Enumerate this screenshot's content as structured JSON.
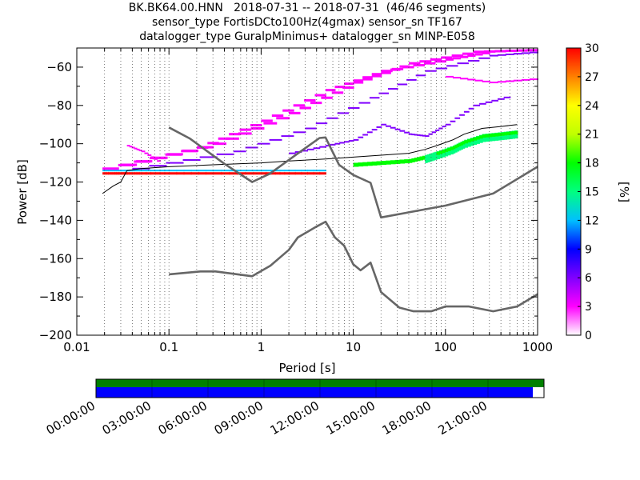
{
  "header": {
    "title_lines": [
      "BK.BK64.00.HNN   2018-07-31 -- 2018-07-31  (46/46 segments)",
      "sensor_type FortisDCto100Hz(4gmax) sensor_sn TF167",
      "datalogger_type GuralpMinimus+ datalogger_sn MINP-E058"
    ]
  },
  "chart_data": [
    {
      "type": "heatmap",
      "xlabel": "Period [s]",
      "ylabel": "Power [dB]",
      "x_scale": "log",
      "xlim": [
        0.01,
        1000
      ],
      "ylim": [
        -200,
        -50
      ],
      "x_ticks": [
        0.01,
        0.1,
        1,
        10,
        100,
        1000
      ],
      "x_tick_labels": [
        "0.01",
        "0.1",
        "1",
        "10",
        "100",
        "1000"
      ],
      "y_ticks": [
        -200,
        -180,
        -160,
        -140,
        -120,
        -100,
        -80,
        -60
      ],
      "y_tick_labels": [
        "−200",
        "−180",
        "−160",
        "−140",
        "−120",
        "−100",
        "−80",
        "−60"
      ],
      "grid": "dotted (vertical)",
      "colorbar": {
        "label": "[%]",
        "range": [
          0,
          30
        ],
        "ticks": [
          "0",
          "3",
          "6",
          "9",
          "12",
          "15",
          "18",
          "21",
          "24",
          "27",
          "30"
        ],
        "colormap": [
          "#ffffff",
          "#ff00ff",
          "#8000ff",
          "#0000ff",
          "#00c0ff",
          "#00ff80",
          "#00ff00",
          "#c0ff00",
          "#ffff00",
          "#ff8000",
          "#ff0000"
        ]
      },
      "series": [
        {
          "name": "",
          "style": "black thin",
          "points": [
            [
              0.019,
              -126
            ],
            [
              0.025,
              -122
            ],
            [
              0.03,
              -120
            ],
            [
              0.035,
              -114
            ],
            [
              0.05,
              -113
            ],
            [
              0.1,
              -112
            ],
            [
              0.3,
              -111
            ],
            [
              1,
              -110
            ],
            [
              2,
              -109
            ],
            [
              5,
              -108
            ],
            [
              10,
              -107
            ],
            [
              20,
              -106
            ],
            [
              40,
              -105
            ],
            [
              60,
              -103
            ],
            [
              80,
              -101
            ],
            [
              120,
              -98
            ],
            [
              160,
              -95
            ],
            [
              250,
              -92
            ],
            [
              400,
              -91
            ],
            [
              600,
              -90
            ]
          ]
        },
        {
          "name": "",
          "style": "gray thick",
          "points": [
            [
              0.1,
              -91.5
            ],
            [
              0.17,
              -97.4
            ],
            [
              0.4,
              -110.5
            ],
            [
              0.8,
              -120
            ],
            [
              1.24,
              -115.7
            ],
            [
              2.4,
              -105.7
            ],
            [
              4.3,
              -97
            ],
            [
              5.0,
              -96.7
            ],
            [
              7.0,
              -111
            ],
            [
              10.0,
              -116.3
            ],
            [
              15.4,
              -120.4
            ],
            [
              20,
              -138.5
            ],
            [
              100,
              -132.3
            ],
            [
              330,
              -126
            ],
            [
              1000,
              -112
            ]
          ]
        },
        {
          "name": "",
          "style": "gray thick",
          "points": [
            [
              0.1,
              -168.2
            ],
            [
              0.22,
              -166.7
            ],
            [
              0.32,
              -166.7
            ],
            [
              0.8,
              -169.2
            ],
            [
              1.26,
              -163.7
            ],
            [
              2.0,
              -155.4
            ],
            [
              2.51,
              -148.9
            ],
            [
              3.98,
              -143.3
            ],
            [
              5.01,
              -140.7
            ],
            [
              6.31,
              -148.9
            ],
            [
              7.94,
              -153.2
            ],
            [
              10.0,
              -163
            ],
            [
              12.0,
              -166.1
            ],
            [
              15.4,
              -162.1
            ],
            [
              20.0,
              -177.5
            ],
            [
              31.6,
              -185.6
            ],
            [
              45,
              -187.5
            ],
            [
              70,
              -187.5
            ],
            [
              100,
              -185
            ],
            [
              180,
              -185
            ],
            [
              330,
              -187.5
            ],
            [
              600,
              -185
            ],
            [
              1000,
              -178.6
            ]
          ]
        }
      ]
    },
    {
      "type": "timeline",
      "x_tick_labels": [
        "00:00:00",
        "03:00:00",
        "06:00:00",
        "09:00:00",
        "12:00:00",
        "15:00:00",
        "18:00:00",
        "21:00:00"
      ],
      "data_coverage": 1.0,
      "psd_coverage": 0.975,
      "colors": {
        "data": "#008000",
        "psd": "#0000ff"
      }
    }
  ]
}
